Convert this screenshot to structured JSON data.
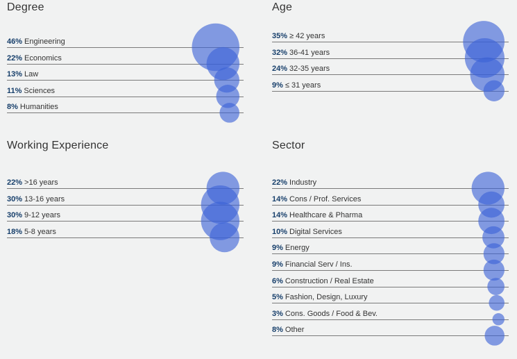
{
  "bubble_color": "#3b63d6",
  "line_color": "#7a7a7a",
  "pct_color": "#173f6b",
  "chart_data": [
    {
      "type": "bubble-list",
      "title": "Degree",
      "rows": [
        {
          "pct": "46%",
          "label": "Engineering",
          "value": 46
        },
        {
          "pct": "22%",
          "label": "Economics",
          "value": 22
        },
        {
          "pct": "13%",
          "label": "Law",
          "value": 13
        },
        {
          "pct": "11%",
          "label": "Sciences",
          "value": 11
        },
        {
          "pct": "8%",
          "label": "Humanities",
          "value": 8
        }
      ]
    },
    {
      "type": "bubble-list",
      "title": "Age",
      "rows": [
        {
          "pct": "35%",
          "label": "≥ 42 years",
          "value": 35
        },
        {
          "pct": "32%",
          "label": "36-41 years",
          "value": 32
        },
        {
          "pct": "24%",
          "label": "32-35 years",
          "value": 24
        },
        {
          "pct": "9%",
          "label": "≤ 31 years",
          "value": 9
        }
      ]
    },
    {
      "type": "bubble-list",
      "title": "Working Experience",
      "rows": [
        {
          "pct": "22%",
          "label": ">16 years",
          "value": 22
        },
        {
          "pct": "30%",
          "label": "13-16 years",
          "value": 30
        },
        {
          "pct": "30%",
          "label": "9-12 years",
          "value": 30
        },
        {
          "pct": "18%",
          "label": "5-8 years",
          "value": 18
        }
      ]
    },
    {
      "type": "bubble-list",
      "title": "Sector",
      "rows": [
        {
          "pct": "22%",
          "label": "Industry",
          "value": 22
        },
        {
          "pct": "14%",
          "label": "Cons / Prof. Services",
          "value": 14
        },
        {
          "pct": "14%",
          "label": "Healthcare & Pharma",
          "value": 14
        },
        {
          "pct": "10%",
          "label": "Digital Services",
          "value": 10
        },
        {
          "pct": "9%",
          "label": "Energy",
          "value": 9
        },
        {
          "pct": "9%",
          "label": "Financial Serv / Ins.",
          "value": 9
        },
        {
          "pct": "6%",
          "label": "Construction / Real Estate",
          "value": 6
        },
        {
          "pct": "5%",
          "label": "Fashion, Design, Luxury",
          "value": 5
        },
        {
          "pct": "3%",
          "label": "Cons. Goods / Food & Bev.",
          "value": 3
        },
        {
          "pct": "8%",
          "label": "Other",
          "value": 8
        }
      ]
    }
  ]
}
